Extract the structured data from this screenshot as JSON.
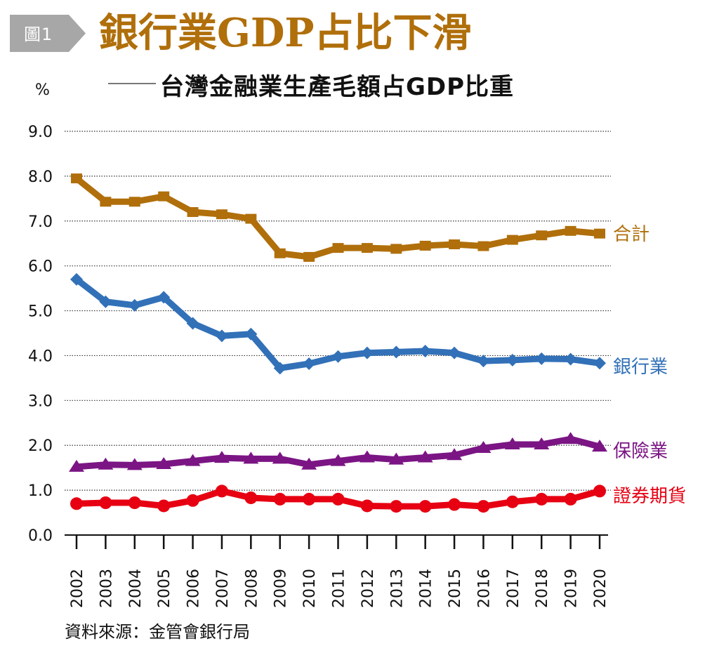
{
  "header": {
    "badge": "圖1",
    "title": "銀行業GDP占比下滑",
    "subtitle": "台灣金融業生產毛額占GDP比重"
  },
  "footer": {
    "source": "資料來源：金管會銀行局"
  },
  "chart_data": {
    "type": "line",
    "title": "銀行業GDP占比下滑",
    "subtitle": "台灣金融業生產毛額占GDP比重",
    "xlabel": "",
    "ylabel": "%",
    "ylim": [
      0,
      9
    ],
    "yticks": [
      "0.0",
      "1.0",
      "2.0",
      "3.0",
      "4.0",
      "5.0",
      "6.0",
      "7.0",
      "8.0",
      "9.0"
    ],
    "grid": true,
    "legend": "right (inline labels at line ends)",
    "x": [
      "2002",
      "2003",
      "2004",
      "2005",
      "2006",
      "2007",
      "2008",
      "2009",
      "2010",
      "2011",
      "2012",
      "2013",
      "2014",
      "2015",
      "2016",
      "2017",
      "2018",
      "2019",
      "2020"
    ],
    "series": [
      {
        "name": "合計",
        "color": "#b06f0b",
        "marker": "square",
        "values": [
          7.95,
          7.43,
          7.43,
          7.55,
          7.2,
          7.15,
          7.05,
          6.28,
          6.2,
          6.4,
          6.4,
          6.38,
          6.45,
          6.48,
          6.44,
          6.58,
          6.68,
          6.78,
          6.72
        ]
      },
      {
        "name": "銀行業",
        "color": "#3271b8",
        "marker": "diamond",
        "values": [
          5.7,
          5.2,
          5.12,
          5.3,
          4.72,
          4.44,
          4.48,
          3.72,
          3.82,
          3.98,
          4.06,
          4.08,
          4.1,
          4.06,
          3.88,
          3.9,
          3.93,
          3.92,
          3.83
        ]
      },
      {
        "name": "保險業",
        "color": "#7b1584",
        "marker": "triangle",
        "values": [
          1.52,
          1.57,
          1.56,
          1.58,
          1.65,
          1.72,
          1.7,
          1.7,
          1.57,
          1.65,
          1.73,
          1.68,
          1.73,
          1.78,
          1.94,
          2.02,
          2.02,
          2.14,
          1.97
        ]
      },
      {
        "name": "證券期貨",
        "color": "#e60012",
        "marker": "circle",
        "values": [
          0.7,
          0.72,
          0.72,
          0.65,
          0.77,
          0.98,
          0.83,
          0.8,
          0.8,
          0.8,
          0.65,
          0.64,
          0.64,
          0.68,
          0.64,
          0.74,
          0.8,
          0.8,
          0.98
        ]
      }
    ]
  }
}
